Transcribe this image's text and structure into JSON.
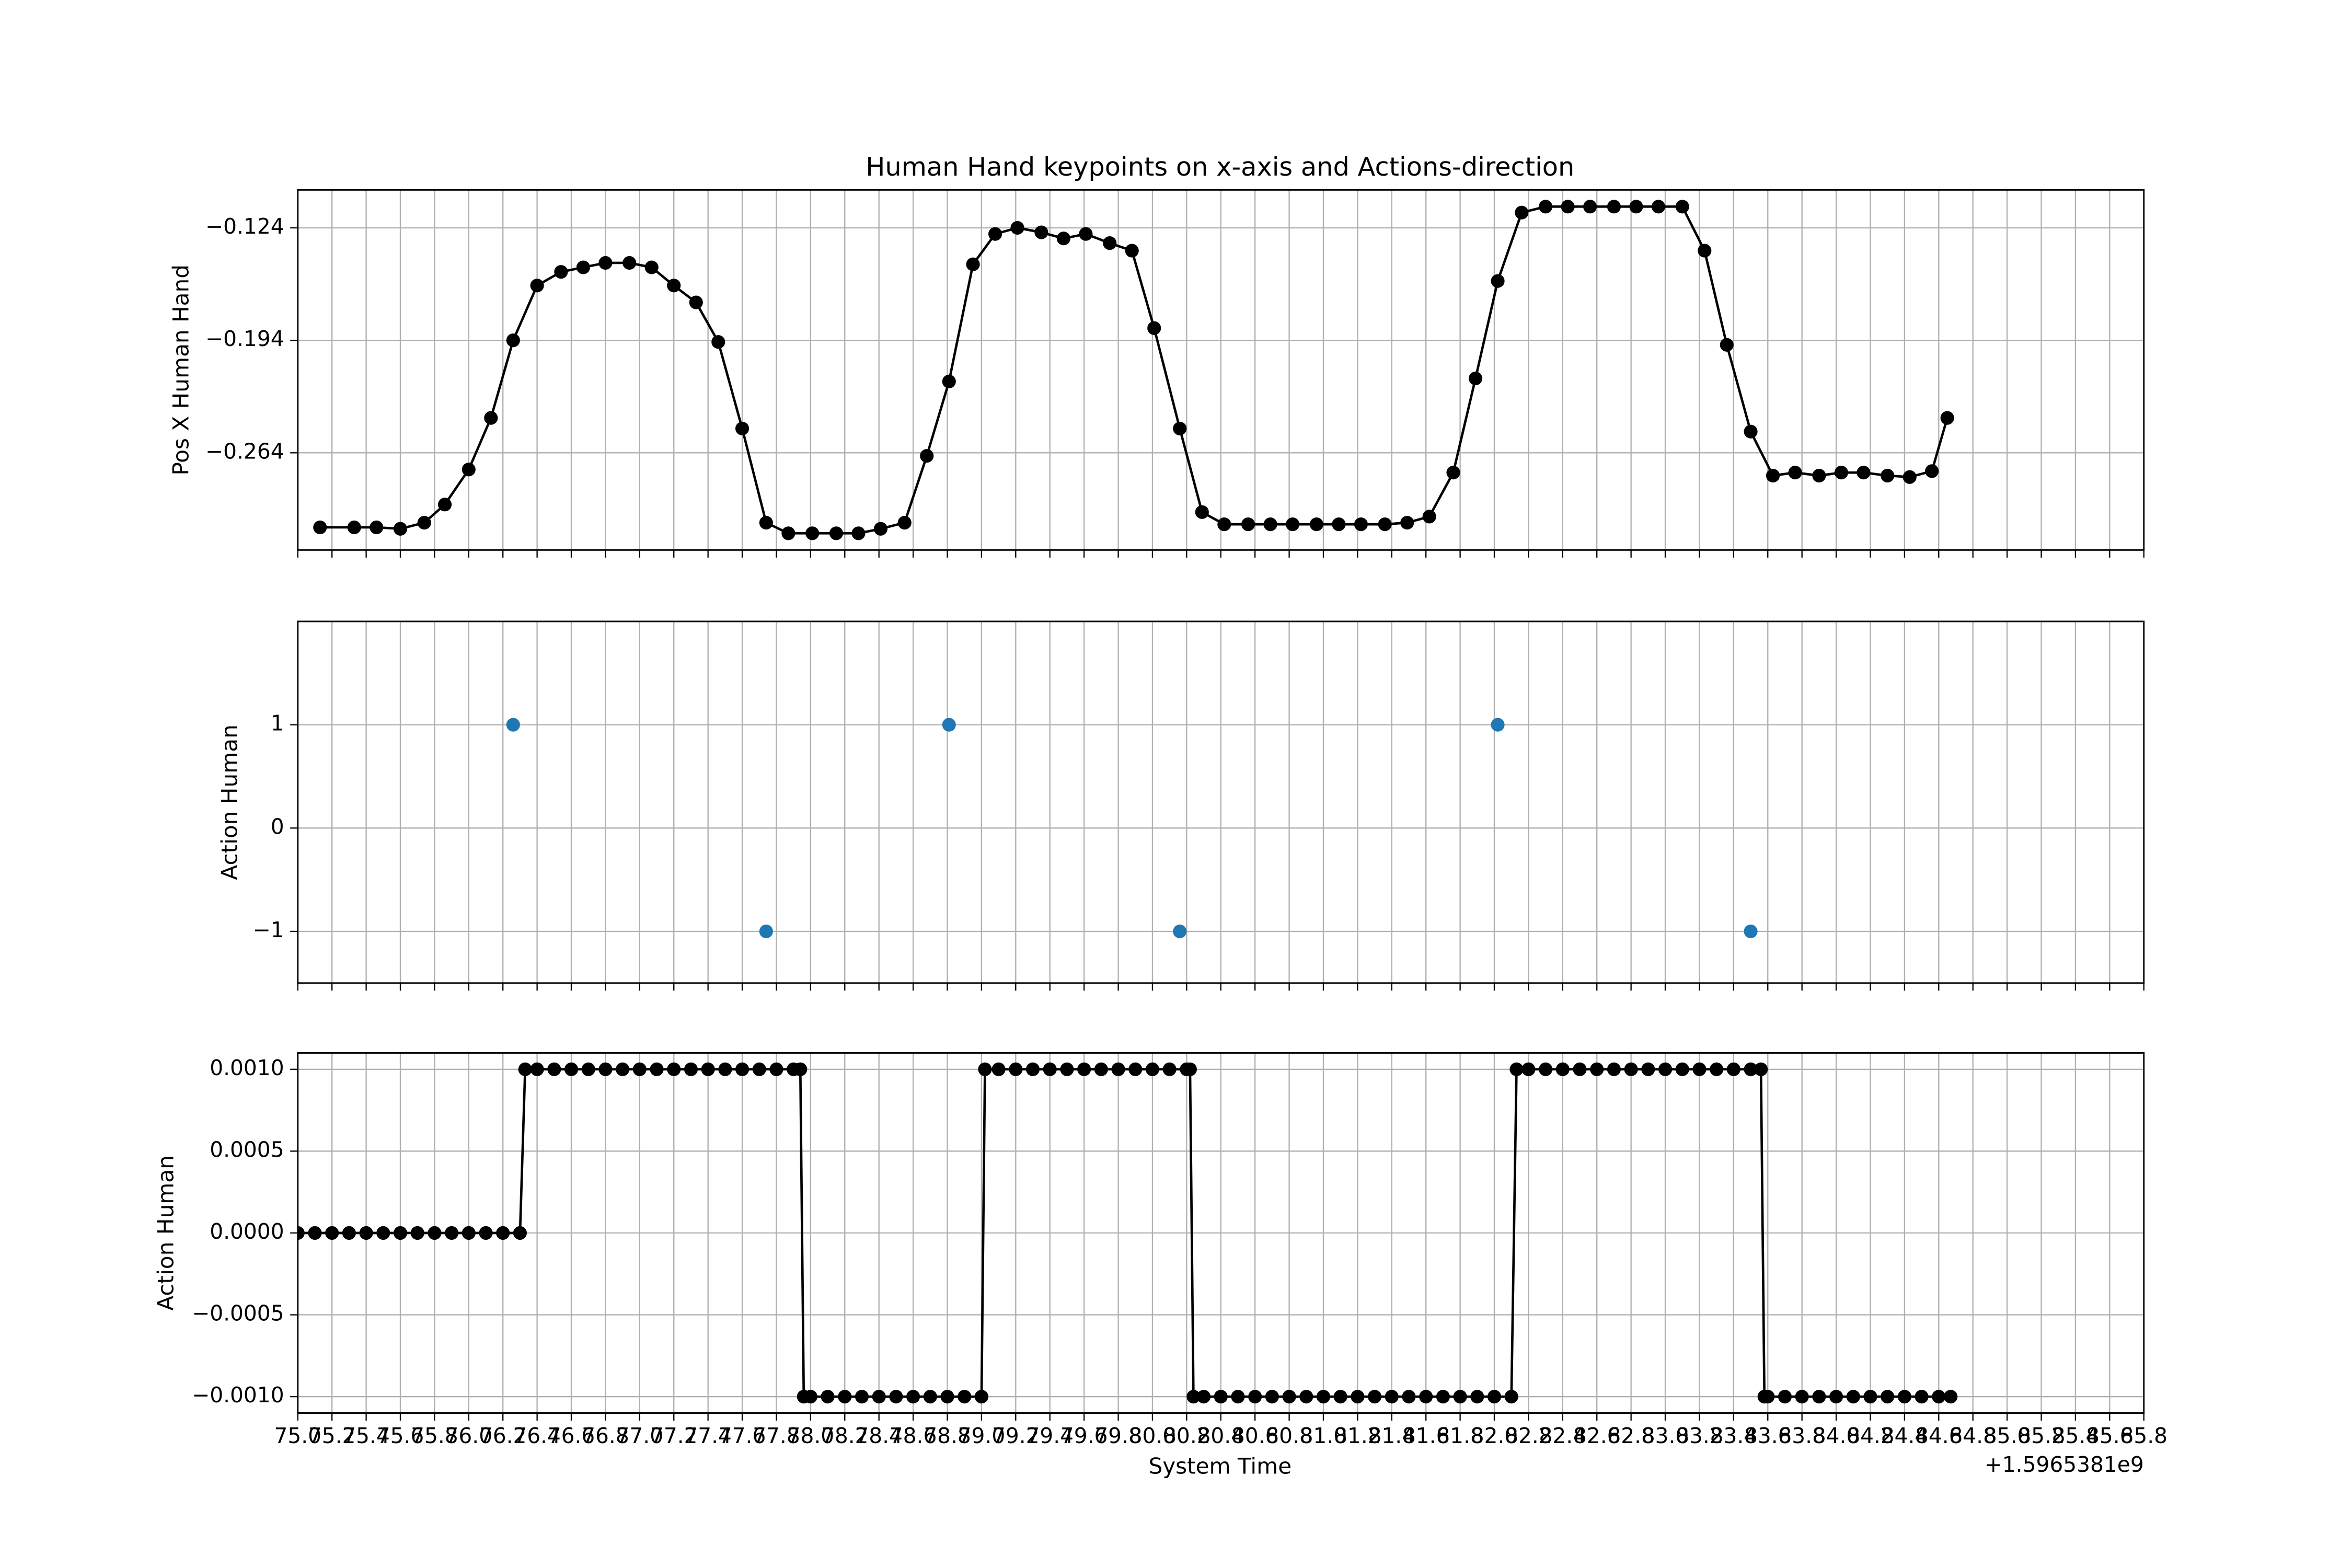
{
  "chart_data": [
    {
      "type": "line",
      "title": "Human Hand keypoints on x-axis and Actions-direction",
      "ylabel": "Pos X Human Hand",
      "color": "#000000",
      "grid": true,
      "xlim": [
        75.0,
        85.8
      ],
      "ylim": [
        -0.3245,
        -0.1004
      ],
      "yticks": [
        {
          "value": -0.124,
          "label": "−0.124"
        },
        {
          "value": -0.194,
          "label": "−0.194"
        },
        {
          "value": -0.264,
          "label": "−0.264"
        }
      ],
      "x": [
        75.13,
        75.33,
        75.46,
        75.6,
        75.74,
        75.86,
        76.0,
        76.13,
        76.26,
        76.4,
        76.54,
        76.67,
        76.8,
        76.94,
        77.07,
        77.2,
        77.33,
        77.46,
        77.6,
        77.74,
        77.87,
        78.01,
        78.15,
        78.28,
        78.41,
        78.55,
        78.68,
        78.81,
        78.95,
        79.08,
        79.21,
        79.35,
        79.48,
        79.61,
        79.75,
        79.88,
        80.01,
        80.16,
        80.29,
        80.42,
        80.56,
        80.69,
        80.82,
        80.96,
        81.09,
        81.22,
        81.36,
        81.49,
        81.62,
        81.76,
        81.89,
        82.02,
        82.16,
        82.3,
        82.43,
        82.56,
        82.7,
        82.83,
        82.96,
        83.1,
        83.23,
        83.36,
        83.5,
        83.63,
        83.76,
        83.9,
        84.03,
        84.16,
        84.3,
        84.43,
        84.56,
        84.65
      ],
      "values": [
        -0.3104,
        -0.3104,
        -0.3104,
        -0.3113,
        -0.3075,
        -0.2962,
        -0.2744,
        -0.2423,
        -0.194,
        -0.1599,
        -0.1514,
        -0.1486,
        -0.1458,
        -0.1458,
        -0.1486,
        -0.1599,
        -0.1704,
        -0.195,
        -0.2489,
        -0.3075,
        -0.3141,
        -0.3141,
        -0.3141,
        -0.3141,
        -0.3113,
        -0.3075,
        -0.2659,
        -0.2196,
        -0.1467,
        -0.1278,
        -0.124,
        -0.1268,
        -0.1306,
        -0.1278,
        -0.1335,
        -0.1382,
        -0.1864,
        -0.2489,
        -0.3009,
        -0.3085,
        -0.3085,
        -0.3085,
        -0.3085,
        -0.3085,
        -0.3085,
        -0.3085,
        -0.3085,
        -0.3075,
        -0.3037,
        -0.2763,
        -0.2177,
        -0.1571,
        -0.1145,
        -0.1108,
        -0.1108,
        -0.1108,
        -0.1108,
        -0.1108,
        -0.1108,
        -0.1108,
        -0.1382,
        -0.1968,
        -0.2508,
        -0.2782,
        -0.2763,
        -0.2782,
        -0.2763,
        -0.2763,
        -0.2782,
        -0.2791,
        -0.2754,
        -0.2423
      ]
    },
    {
      "type": "scatter",
      "ylabel": "Action Human",
      "color": "#1f77b4",
      "grid": true,
      "xlim": [
        75.0,
        85.8
      ],
      "ylim": [
        -1.5,
        2.0
      ],
      "yticks": [
        1,
        0,
        {
          "value": -1,
          "label": "−1"
        }
      ],
      "x": [
        76.26,
        77.74,
        78.81,
        80.16,
        82.02,
        83.5
      ],
      "values": [
        1,
        -1,
        1,
        -1,
        1,
        -1
      ]
    },
    {
      "type": "line",
      "ylabel": "Action Human",
      "xlabel": "System Time",
      "x_offset": "+1.5965381e9",
      "color": "#000000",
      "grid": true,
      "xlim": [
        75.0,
        85.8
      ],
      "ylim": [
        -0.0011,
        0.0011
      ],
      "yticks": [
        {
          "value": 0.001,
          "label": "0.0010"
        },
        {
          "value": 0.0005,
          "label": "0.0005"
        },
        {
          "value": 0,
          "label": "0.0000"
        },
        {
          "value": -0.0005,
          "label": "−0.0005"
        },
        {
          "value": -0.001,
          "label": "−0.0010"
        }
      ],
      "xticks": [
        {
          "value": 75,
          "label": "75.0"
        },
        75.2,
        75.4,
        75.6,
        75.8,
        {
          "value": 76,
          "label": "76.0"
        },
        76.2,
        76.4,
        76.6,
        76.8,
        {
          "value": 77,
          "label": "77.0"
        },
        77.2,
        77.4,
        77.6,
        77.8,
        {
          "value": 78,
          "label": "78.0"
        },
        78.2,
        78.4,
        78.6,
        78.8,
        {
          "value": 79,
          "label": "79.0"
        },
        79.2,
        79.4,
        79.6,
        79.8,
        {
          "value": 80,
          "label": "80.0"
        },
        80.2,
        80.4,
        80.6,
        80.8,
        {
          "value": 81,
          "label": "81.0"
        },
        81.2,
        81.4,
        81.6,
        81.8,
        {
          "value": 82,
          "label": "82.0"
        },
        82.2,
        82.4,
        82.6,
        82.8,
        {
          "value": 83,
          "label": "83.0"
        },
        83.2,
        83.4,
        83.6,
        83.8,
        {
          "value": 84,
          "label": "84.0"
        },
        84.2,
        84.4,
        84.6,
        84.8,
        {
          "value": 85,
          "label": "85.0"
        },
        85.2,
        85.4,
        85.6,
        85.8
      ],
      "x": [
        75.0,
        75.1,
        75.2,
        75.3,
        75.4,
        75.5,
        75.6,
        75.7,
        75.8,
        75.9,
        76.0,
        76.1,
        76.2,
        76.3,
        76.33,
        76.4,
        76.5,
        76.6,
        76.7,
        76.8,
        76.9,
        77.0,
        77.1,
        77.2,
        77.3,
        77.4,
        77.5,
        77.6,
        77.7,
        77.8,
        77.9,
        77.94,
        77.96,
        78.0,
        78.1,
        78.2,
        78.3,
        78.4,
        78.5,
        78.6,
        78.7,
        78.8,
        78.9,
        79.0,
        79.02,
        79.1,
        79.2,
        79.3,
        79.4,
        79.5,
        79.6,
        79.7,
        79.8,
        79.9,
        80.0,
        80.1,
        80.2,
        80.22,
        80.24,
        80.3,
        80.4,
        80.5,
        80.6,
        80.7,
        80.8,
        80.9,
        81.0,
        81.1,
        81.2,
        81.3,
        81.4,
        81.5,
        81.6,
        81.7,
        81.8,
        81.9,
        82.0,
        82.1,
        82.13,
        82.2,
        82.3,
        82.4,
        82.5,
        82.6,
        82.7,
        82.8,
        82.9,
        83.0,
        83.1,
        83.2,
        83.3,
        83.4,
        83.5,
        83.56,
        83.58,
        83.6,
        83.7,
        83.8,
        83.9,
        84.0,
        84.1,
        84.2,
        84.3,
        84.4,
        84.5,
        84.6,
        84.67
      ],
      "values": [
        0,
        0,
        0,
        0,
        0,
        0,
        0,
        0,
        0,
        0,
        0,
        0,
        0,
        0,
        0.001,
        0.001,
        0.001,
        0.001,
        0.001,
        0.001,
        0.001,
        0.001,
        0.001,
        0.001,
        0.001,
        0.001,
        0.001,
        0.001,
        0.001,
        0.001,
        0.001,
        0.001,
        -0.001,
        -0.001,
        -0.001,
        -0.001,
        -0.001,
        -0.001,
        -0.001,
        -0.001,
        -0.001,
        -0.001,
        -0.001,
        -0.001,
        0.001,
        0.001,
        0.001,
        0.001,
        0.001,
        0.001,
        0.001,
        0.001,
        0.001,
        0.001,
        0.001,
        0.001,
        0.001,
        0.001,
        -0.001,
        -0.001,
        -0.001,
        -0.001,
        -0.001,
        -0.001,
        -0.001,
        -0.001,
        -0.001,
        -0.001,
        -0.001,
        -0.001,
        -0.001,
        -0.001,
        -0.001,
        -0.001,
        -0.001,
        -0.001,
        -0.001,
        -0.001,
        0.001,
        0.001,
        0.001,
        0.001,
        0.001,
        0.001,
        0.001,
        0.001,
        0.001,
        0.001,
        0.001,
        0.001,
        0.001,
        0.001,
        0.001,
        0.001,
        -0.001,
        -0.001,
        -0.001,
        -0.001,
        -0.001,
        -0.001,
        -0.001,
        -0.001,
        -0.001,
        -0.001,
        -0.001,
        -0.001,
        -0.001
      ]
    }
  ]
}
